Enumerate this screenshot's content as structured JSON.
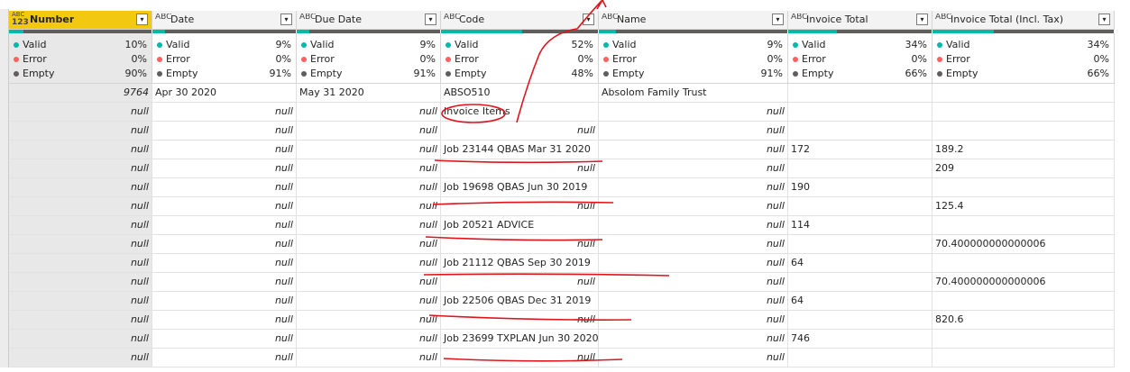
{
  "columns": [
    {
      "name": "Number",
      "icon_top": "ABC",
      "icon_bottom": "123",
      "kind": "number",
      "selected": true,
      "valid": {
        "value": 10,
        "label": "10%"
      },
      "error": {
        "value": 0,
        "label": "0%"
      },
      "empty": {
        "value": 90,
        "label": "90%"
      }
    },
    {
      "name": "Date",
      "icon_top": "ABC",
      "kind": "text",
      "valid": {
        "value": 9,
        "label": "9%"
      },
      "error": {
        "value": 0,
        "label": "0%"
      },
      "empty": {
        "value": 91,
        "label": "91%"
      }
    },
    {
      "name": "Due Date",
      "icon_top": "ABC",
      "kind": "text",
      "valid": {
        "value": 9,
        "label": "9%"
      },
      "error": {
        "value": 0,
        "label": "0%"
      },
      "empty": {
        "value": 91,
        "label": "91%"
      }
    },
    {
      "name": "Code",
      "icon_top": "ABC",
      "kind": "text",
      "valid": {
        "value": 52,
        "label": "52%"
      },
      "error": {
        "value": 0,
        "label": "0%"
      },
      "empty": {
        "value": 48,
        "label": "48%"
      }
    },
    {
      "name": "Name",
      "icon_top": "ABC",
      "kind": "text",
      "valid": {
        "value": 9,
        "label": "9%"
      },
      "error": {
        "value": 0,
        "label": "0%"
      },
      "empty": {
        "value": 91,
        "label": "91%"
      }
    },
    {
      "name": "Invoice Total",
      "icon_top": "ABC",
      "kind": "text",
      "valid": {
        "value": 34,
        "label": "34%"
      },
      "error": {
        "value": 0,
        "label": "0%"
      },
      "empty": {
        "value": 66,
        "label": "66%"
      }
    },
    {
      "name": "Invoice Total (Incl. Tax)",
      "icon_top": "ABC",
      "kind": "text",
      "valid": {
        "value": 34,
        "label": "34%"
      },
      "error": {
        "value": 0,
        "label": "0%"
      },
      "empty": {
        "value": 66,
        "label": "66%"
      }
    }
  ],
  "quality_labels": [
    "Valid",
    "Error",
    "Empty"
  ],
  "null_text": "null",
  "rows": [
    [
      "9764",
      "Apr 30 2020",
      "May 31 2020",
      "ABSO510",
      "Absolom Family Trust",
      null,
      null
    ],
    [
      "null",
      "null",
      "null",
      "Invoice Items",
      "null",
      null,
      null
    ],
    [
      "null",
      "null",
      "null",
      "null",
      "null",
      null,
      null
    ],
    [
      "null",
      "null",
      "null",
      "Job 23144 QBAS Mar 31 2020",
      "null",
      "172",
      "189.2"
    ],
    [
      "null",
      "null",
      "null",
      "null",
      "null",
      null,
      "209"
    ],
    [
      "null",
      "null",
      "null",
      "Job 19698 QBAS Jun 30 2019",
      "null",
      "190",
      null
    ],
    [
      "null",
      "null",
      "null",
      "null",
      "null",
      null,
      "125.4"
    ],
    [
      "null",
      "null",
      "null",
      "Job 20521 ADVICE",
      "null",
      "114",
      null
    ],
    [
      "null",
      "null",
      "null",
      "null",
      "null",
      null,
      "70.400000000000006"
    ],
    [
      "null",
      "null",
      "null",
      "Job 21112 QBAS Sep 30 2019",
      "null",
      "64",
      null
    ],
    [
      "null",
      "null",
      "null",
      "null",
      "null",
      null,
      "70.400000000000006"
    ],
    [
      "null",
      "null",
      "null",
      "Job 22506 QBAS Dec 31 2019",
      "null",
      "64",
      null
    ],
    [
      "null",
      "null",
      "null",
      "null",
      "null",
      null,
      "820.6"
    ],
    [
      "null",
      "null",
      "null",
      "Job 23699 TXPLAN Jun 30 2020",
      "null",
      "746",
      null
    ],
    [
      "null",
      "null",
      "null",
      "null",
      "null",
      null,
      null
    ]
  ]
}
